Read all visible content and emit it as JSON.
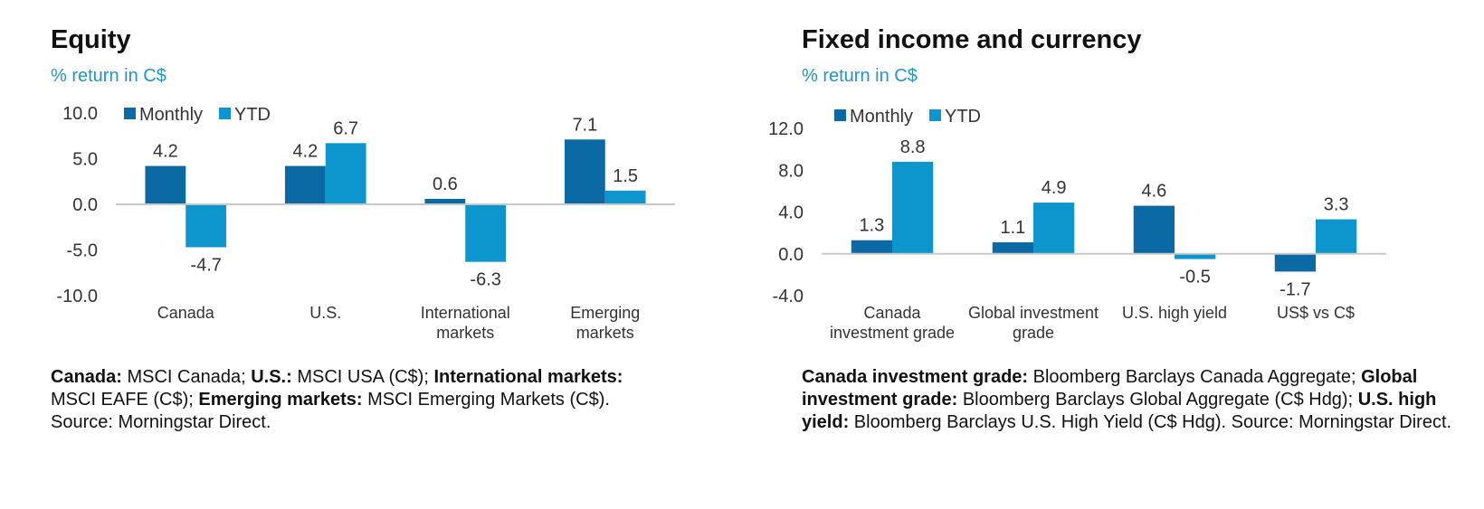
{
  "colors": {
    "monthly": "#0B69A3",
    "ytd": "#0D95CD",
    "axis": "#c8c8c8",
    "subtitle": "#1f95c9"
  },
  "chart_data": [
    {
      "type": "bar",
      "title": "Equity",
      "subtitle": "% return in C$",
      "legend": [
        "Monthly",
        "YTD"
      ],
      "legend_position": "top-left",
      "categories": [
        [
          "Canada"
        ],
        [
          "U.S."
        ],
        [
          "International",
          "markets"
        ],
        [
          "Emerging",
          "markets"
        ]
      ],
      "series": [
        {
          "name": "Monthly",
          "values": [
            4.2,
            4.2,
            0.6,
            7.1
          ]
        },
        {
          "name": "YTD",
          "values": [
            -4.7,
            6.7,
            -6.3,
            1.5
          ]
        }
      ],
      "data_labels": {
        "Monthly": [
          "4.2",
          "4.2",
          "0.6",
          "7.1"
        ],
        "YTD": [
          "-4.7",
          "6.7",
          "-6.3",
          "1.5"
        ]
      },
      "yticks": [
        "10.0",
        "5.0",
        "0.0",
        "-5.0",
        "-10.0"
      ],
      "ylim": [
        -10,
        10
      ],
      "grid": false
    },
    {
      "type": "bar",
      "title": "Fixed income and currency",
      "subtitle": "% return in C$",
      "legend": [
        "Monthly",
        "YTD"
      ],
      "legend_position": "top-left",
      "categories": [
        [
          "Canada",
          "investment grade"
        ],
        [
          "Global investment",
          "grade"
        ],
        [
          "U.S. high yield"
        ],
        [
          "US$ vs C$"
        ]
      ],
      "series": [
        {
          "name": "Monthly",
          "values": [
            1.3,
            1.1,
            4.6,
            -1.7
          ]
        },
        {
          "name": "YTD",
          "values": [
            8.8,
            4.9,
            -0.5,
            3.3
          ]
        }
      ],
      "data_labels": {
        "Monthly": [
          "1.3",
          "1.1",
          "4.6",
          "-1.7"
        ],
        "YTD": [
          "8.8",
          "4.9",
          "-0.5",
          "3.3"
        ]
      },
      "yticks": [
        "12.0",
        "8.0",
        "4.0",
        "0.0",
        "-4.0"
      ],
      "ylim": [
        -4,
        12
      ],
      "grid": false
    }
  ],
  "notes": {
    "left": [
      {
        "bold": "Canada:",
        "text": " MSCI Canada; "
      },
      {
        "bold": "U.S.:",
        "text": " MSCI USA (C$); "
      },
      {
        "bold": "International markets:",
        "text": " MSCI EAFE (C$); "
      },
      {
        "bold": "Emerging markets:",
        "text": " MSCI Emerging Markets (C$). Source: Morningstar Direct."
      }
    ],
    "right": [
      {
        "bold": "Canada investment grade:",
        "text": " Bloomberg Barclays Canada Aggregate; "
      },
      {
        "bold": "Global investment grade:",
        "text": " Bloomberg Barclays Global Aggregate (C$ Hdg); "
      },
      {
        "bold": "U.S. high yield:",
        "text": " Bloomberg Barclays U.S. High Yield (C$ Hdg). Source: Morningstar Direct."
      }
    ]
  }
}
